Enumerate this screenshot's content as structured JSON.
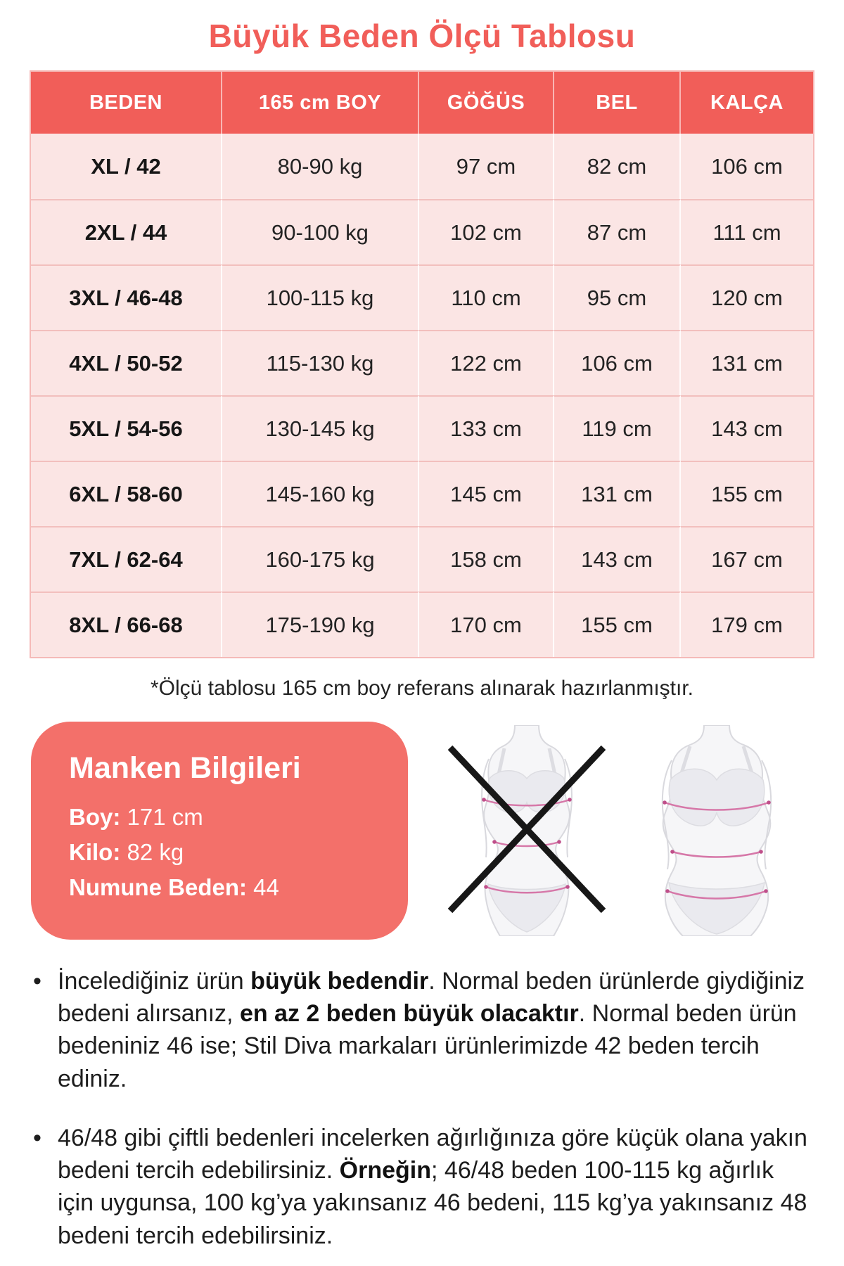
{
  "title": "Büyük Beden Ölçü Tablosu",
  "table": {
    "headers": [
      "BEDEN",
      "165 cm BOY",
      "GÖĞÜS",
      "BEL",
      "KALÇA"
    ],
    "rows": [
      [
        "XL / 42",
        "80-90 kg",
        "97 cm",
        "82 cm",
        "106 cm"
      ],
      [
        "2XL / 44",
        "90-100 kg",
        "102 cm",
        "87 cm",
        "111 cm"
      ],
      [
        "3XL / 46-48",
        "100-115 kg",
        "110 cm",
        "95 cm",
        "120 cm"
      ],
      [
        "4XL / 50-52",
        "115-130 kg",
        "122 cm",
        "106 cm",
        "131 cm"
      ],
      [
        "5XL / 54-56",
        "130-145 kg",
        "133 cm",
        "119 cm",
        "143 cm"
      ],
      [
        "6XL / 58-60",
        "145-160 kg",
        "145 cm",
        "131 cm",
        "155 cm"
      ],
      [
        "7XL / 62-64",
        "160-175 kg",
        "158 cm",
        "143 cm",
        "167 cm"
      ],
      [
        "8XL / 66-68",
        "175-190 kg",
        "170 cm",
        "155 cm",
        "179 cm"
      ]
    ]
  },
  "footnote": "*Ölçü tablosu 165 cm boy referans alınarak hazırlanmıştır.",
  "model_info": {
    "title": "Manken Bilgileri",
    "rows": [
      {
        "label": "Boy:",
        "value": "171 cm"
      },
      {
        "label": "Kilo:",
        "value": "82 kg"
      },
      {
        "label": "Numune Beden:",
        "value": "44"
      }
    ]
  },
  "figures": {
    "wrong_figure": "slim-body-crossed-out",
    "correct_figure": "plus-size-body"
  },
  "bullets": [
    {
      "marker": "•",
      "segments": [
        {
          "text": "İncelediğiniz ürün ",
          "bold": false
        },
        {
          "text": "büyük bedendir",
          "bold": true
        },
        {
          "text": ". Normal beden ürünlerde giydiğiniz bedeni alırsanız, ",
          "bold": false
        },
        {
          "text": "en az 2 beden büyük olacaktır",
          "bold": true
        },
        {
          "text": ". Normal beden ürün bedeniniz 46 ise; Stil Diva markaları ürünlerimizde 42 beden tercih ediniz.",
          "bold": false
        }
      ]
    },
    {
      "marker": "•",
      "segments": [
        {
          "text": "46/48 gibi çiftli bedenleri incelerken ağırlığınıza göre küçük olana yakın bedeni tercih edebilirsiniz. ",
          "bold": false
        },
        {
          "text": "Örneğin",
          "bold": true
        },
        {
          "text": "; 46/48 beden 100-115 kg ağırlık için uygunsa, 100 kg’ya yakınsanız 46 bedeni, 115 kg’ya yakınsanız 48 bedeni tercih edebilirsiniz.",
          "bold": false
        }
      ]
    }
  ],
  "colors": {
    "accent": "#f15e59",
    "row-bg": "#fbe5e4",
    "box-bg": "#f3706a",
    "grid-pink": "#f2bfbd",
    "measure-line": "#d677a8",
    "cross": "#171717"
  }
}
